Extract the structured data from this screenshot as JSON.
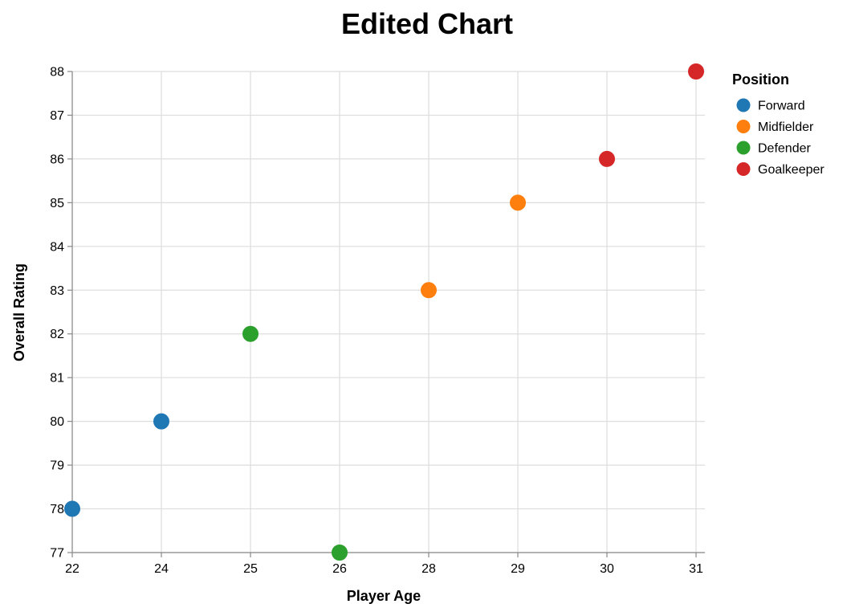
{
  "chart_data": {
    "type": "scatter",
    "title": "Edited Chart",
    "xlabel": "Player Age",
    "ylabel": "Overall Rating",
    "x_ticks": [
      22,
      24,
      25,
      26,
      28,
      29,
      30,
      31
    ],
    "y_ticks": [
      77,
      78,
      79,
      80,
      81,
      82,
      83,
      84,
      85,
      86,
      87,
      88
    ],
    "xlim": [
      22,
      31
    ],
    "ylim": [
      77,
      88
    ],
    "x_scale": "ordinal",
    "grid": true,
    "legend": {
      "title": "Position",
      "placement": "top-right",
      "entries": [
        {
          "label": "Forward",
          "color": "#1f77b4"
        },
        {
          "label": "Midfielder",
          "color": "#ff7f0e"
        },
        {
          "label": "Defender",
          "color": "#2ca02c"
        },
        {
          "label": "Goalkeeper",
          "color": "#d62728"
        }
      ]
    },
    "series": [
      {
        "name": "Forward",
        "color": "#1f77b4",
        "points": [
          {
            "x": 22,
            "y": 78
          },
          {
            "x": 24,
            "y": 80
          }
        ]
      },
      {
        "name": "Midfielder",
        "color": "#ff7f0e",
        "points": [
          {
            "x": 28,
            "y": 83
          },
          {
            "x": 29,
            "y": 85
          }
        ]
      },
      {
        "name": "Defender",
        "color": "#2ca02c",
        "points": [
          {
            "x": 25,
            "y": 82
          },
          {
            "x": 26,
            "y": 77
          }
        ]
      },
      {
        "name": "Goalkeeper",
        "color": "#d62728",
        "points": [
          {
            "x": 30,
            "y": 86
          },
          {
            "x": 31,
            "y": 88
          }
        ]
      }
    ]
  }
}
